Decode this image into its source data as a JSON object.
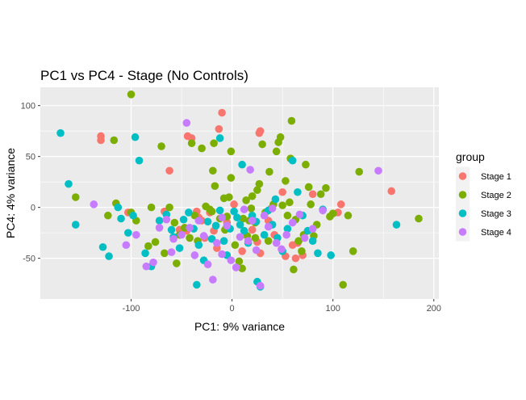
{
  "chart_data": {
    "type": "scatter",
    "title": "PC1 vs PC4 - Stage (No Controls)",
    "xlabel": "PC1: 9% variance",
    "ylabel": "PC4: 4% variance",
    "xlim": [
      -190,
      205
    ],
    "ylim": [
      -90,
      118
    ],
    "xticks": [
      -100,
      0,
      100,
      200
    ],
    "xtick_labels": [
      "-100",
      "0",
      "100",
      "200"
    ],
    "yticks": [
      -50,
      0,
      50,
      100
    ],
    "ytick_labels": [
      "-50",
      "0",
      "50",
      "100"
    ],
    "grid": true,
    "legend": {
      "title": "group",
      "position": "right"
    },
    "series": [
      {
        "name": "Stage 1",
        "color": "#F8766D",
        "points": [
          [
            -130,
            70
          ],
          [
            -130,
            66
          ],
          [
            -103,
            -5
          ],
          [
            -67,
            -4
          ],
          [
            -62,
            36
          ],
          [
            -44,
            70
          ],
          [
            -40,
            68
          ],
          [
            -35,
            -4
          ],
          [
            -33,
            -10
          ],
          [
            -30,
            -13
          ],
          [
            -22,
            -5
          ],
          [
            -18,
            -23
          ],
          [
            -13,
            77
          ],
          [
            -10,
            93
          ],
          [
            -5,
            -15
          ],
          [
            10,
            -43
          ],
          [
            20,
            -22
          ],
          [
            25,
            -34
          ],
          [
            28,
            -45
          ],
          [
            27,
            73
          ],
          [
            28,
            75
          ],
          [
            53,
            -48
          ],
          [
            60,
            -37
          ],
          [
            65,
            -35
          ],
          [
            70,
            -47
          ],
          [
            63,
            -50
          ],
          [
            80,
            13
          ],
          [
            105,
            -5
          ],
          [
            108,
            3
          ],
          [
            158,
            16
          ],
          [
            -45,
            -23
          ],
          [
            -27,
            -30
          ],
          [
            2,
            3
          ],
          [
            36,
            -13
          ],
          [
            42,
            -27
          ],
          [
            -52,
            -22
          ],
          [
            -15,
            -40
          ],
          [
            50,
            15
          ]
        ]
      },
      {
        "name": "Stage 2",
        "color": "#7CAE00",
        "points": [
          [
            -100,
            111
          ],
          [
            -117,
            66
          ],
          [
            -155,
            10
          ],
          [
            -115,
            4
          ],
          [
            -123,
            -8
          ],
          [
            -100,
            -5
          ],
          [
            -95,
            -13
          ],
          [
            -83,
            -38
          ],
          [
            -80,
            0
          ],
          [
            -76,
            -34
          ],
          [
            -70,
            60
          ],
          [
            -67,
            -45
          ],
          [
            -57,
            -15
          ],
          [
            -52,
            -27
          ],
          [
            -47,
            -20
          ],
          [
            -42,
            -30
          ],
          [
            -40,
            63
          ],
          [
            -37,
            -8
          ],
          [
            -34,
            -33
          ],
          [
            -26,
            1
          ],
          [
            -22,
            -2
          ],
          [
            -20,
            -4
          ],
          [
            -19,
            36
          ],
          [
            -17,
            21
          ],
          [
            -12,
            -11
          ],
          [
            -8,
            9
          ],
          [
            -7,
            -22
          ],
          [
            -5,
            -9
          ],
          [
            -3,
            10
          ],
          [
            -1,
            29
          ],
          [
            3,
            -37
          ],
          [
            7,
            -53
          ],
          [
            10,
            -60
          ],
          [
            11,
            -11
          ],
          [
            14,
            7
          ],
          [
            15,
            -28
          ],
          [
            17,
            -13
          ],
          [
            19,
            -1
          ],
          [
            20,
            11
          ],
          [
            23,
            -30
          ],
          [
            25,
            17
          ],
          [
            27,
            23
          ],
          [
            30,
            62
          ],
          [
            33,
            -5
          ],
          [
            36,
            -33
          ],
          [
            39,
            -1
          ],
          [
            41,
            3
          ],
          [
            44,
            55
          ],
          [
            46,
            64
          ],
          [
            48,
            69
          ],
          [
            50,
            2
          ],
          [
            53,
            26
          ],
          [
            55,
            -8
          ],
          [
            57,
            5
          ],
          [
            59,
            85
          ],
          [
            61,
            -61
          ],
          [
            63,
            -12
          ],
          [
            66,
            -33
          ],
          [
            69,
            -43
          ],
          [
            71,
            -27
          ],
          [
            73,
            42
          ],
          [
            76,
            20
          ],
          [
            78,
            3
          ],
          [
            81,
            -28
          ],
          [
            84,
            -17
          ],
          [
            88,
            13
          ],
          [
            93,
            19
          ],
          [
            97,
            -9
          ],
          [
            100,
            -6
          ],
          [
            110,
            -76
          ],
          [
            115,
            -8
          ],
          [
            120,
            -43
          ],
          [
            126,
            35
          ],
          [
            185,
            -11
          ],
          [
            -55,
            -55
          ],
          [
            -30,
            58
          ],
          [
            -62,
            0
          ],
          [
            -1,
            55
          ],
          [
            23,
            -15
          ],
          [
            -18,
            63
          ],
          [
            37,
            35
          ],
          [
            58,
            48
          ]
        ]
      },
      {
        "name": "Stage 3",
        "color": "#00BFC4",
        "points": [
          [
            -170,
            73
          ],
          [
            -162,
            23
          ],
          [
            -155,
            -17
          ],
          [
            -128,
            -39
          ],
          [
            -122,
            -48
          ],
          [
            -113,
            0
          ],
          [
            -110,
            -11
          ],
          [
            -103,
            -25
          ],
          [
            -98,
            -8
          ],
          [
            -96,
            69
          ],
          [
            -92,
            46
          ],
          [
            -86,
            -45
          ],
          [
            -80,
            -58
          ],
          [
            -72,
            -13
          ],
          [
            -65,
            -7
          ],
          [
            -58,
            -29
          ],
          [
            -52,
            -40
          ],
          [
            -48,
            -12
          ],
          [
            -43,
            -5
          ],
          [
            -38,
            -21
          ],
          [
            -33,
            -37
          ],
          [
            -28,
            -52
          ],
          [
            -24,
            -14
          ],
          [
            -20,
            -31
          ],
          [
            -16,
            -18
          ],
          [
            -12,
            -3
          ],
          [
            -8,
            -33
          ],
          [
            -5,
            -47
          ],
          [
            -2,
            -21
          ],
          [
            2,
            -4
          ],
          [
            5,
            -10
          ],
          [
            8,
            -17
          ],
          [
            12,
            -23
          ],
          [
            16,
            -35
          ],
          [
            20,
            -8
          ],
          [
            24,
            -14
          ],
          [
            28,
            -78
          ],
          [
            32,
            -27
          ],
          [
            36,
            -3
          ],
          [
            40,
            -17
          ],
          [
            45,
            -30
          ],
          [
            50,
            -43
          ],
          [
            55,
            -21
          ],
          [
            60,
            46
          ],
          [
            65,
            15
          ],
          [
            70,
            -8
          ],
          [
            75,
            -23
          ],
          [
            80,
            -33
          ],
          [
            85,
            -45
          ],
          [
            90,
            -2
          ],
          [
            98,
            -47
          ],
          [
            163,
            -17
          ],
          [
            -35,
            -76
          ],
          [
            25,
            -73
          ],
          [
            -60,
            -22
          ],
          [
            -12,
            68
          ],
          [
            10,
            42
          ],
          [
            43,
            8
          ]
        ]
      },
      {
        "name": "Stage 4",
        "color": "#C77CFF",
        "points": [
          [
            -137,
            3
          ],
          [
            -105,
            -37
          ],
          [
            -95,
            -27
          ],
          [
            -85,
            -58
          ],
          [
            -78,
            -54
          ],
          [
            -72,
            -20
          ],
          [
            -65,
            -12
          ],
          [
            -58,
            -31
          ],
          [
            -50,
            -27
          ],
          [
            -45,
            83
          ],
          [
            -42,
            -20
          ],
          [
            -37,
            -47
          ],
          [
            -33,
            -13
          ],
          [
            -28,
            -28
          ],
          [
            -24,
            -56
          ],
          [
            -19,
            -71
          ],
          [
            -15,
            -35
          ],
          [
            -10,
            -46
          ],
          [
            -5,
            -18
          ],
          [
            -1,
            -52
          ],
          [
            4,
            -59
          ],
          [
            8,
            -29
          ],
          [
            12,
            -2
          ],
          [
            16,
            -33
          ],
          [
            20,
            -13
          ],
          [
            24,
            -42
          ],
          [
            28,
            -77
          ],
          [
            32,
            -8
          ],
          [
            36,
            -19
          ],
          [
            40,
            -1
          ],
          [
            44,
            -35
          ],
          [
            49,
            -41
          ],
          [
            54,
            -27
          ],
          [
            60,
            -15
          ],
          [
            67,
            -7
          ],
          [
            72,
            -30
          ],
          [
            80,
            -21
          ],
          [
            90,
            -3
          ],
          [
            145,
            36
          ],
          [
            -60,
            -44
          ],
          [
            -10,
            -10
          ],
          [
            18,
            37
          ]
        ]
      }
    ]
  }
}
